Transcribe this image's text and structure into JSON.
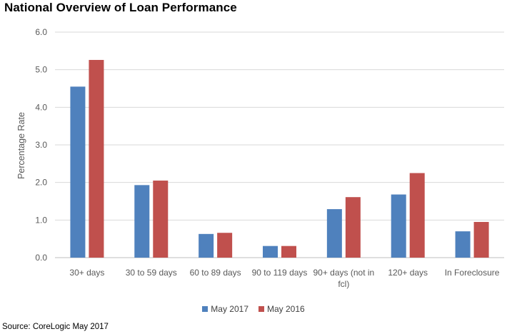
{
  "chart_data": {
    "type": "bar",
    "title": "National Overview of Loan Performance",
    "xlabel": "",
    "ylabel": "Percentage Rate",
    "ylim": [
      0,
      6
    ],
    "yticks": [
      "0.0",
      "1.0",
      "2.0",
      "3.0",
      "4.0",
      "5.0",
      "6.0"
    ],
    "grid": true,
    "legend_position": "bottom",
    "categories": [
      [
        "30+ days"
      ],
      [
        "30 to 59 days"
      ],
      [
        "60 to 89 days"
      ],
      [
        "90 to 119 days"
      ],
      [
        "90+ days (not in",
        "fcl)"
      ],
      [
        "120+ days"
      ],
      [
        "In Foreclosure"
      ]
    ],
    "series": [
      {
        "name": "May 2017",
        "color": "#4f81bd",
        "values": [
          4.55,
          1.93,
          0.63,
          0.31,
          1.29,
          1.68,
          0.7
        ]
      },
      {
        "name": "May 2016",
        "color": "#c0504d",
        "values": [
          5.26,
          2.05,
          0.66,
          0.31,
          1.61,
          2.25,
          0.95
        ]
      }
    ],
    "source": "Source: CoreLogic May 2017"
  }
}
